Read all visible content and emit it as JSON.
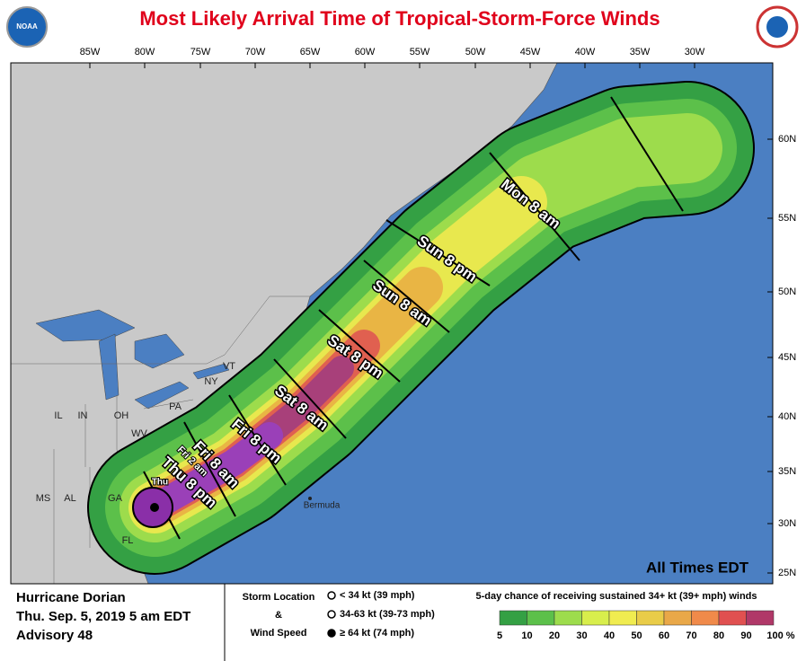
{
  "title": "Most Likely Arrival Time of Tropical-Storm-Force Winds",
  "logo_text": "NOAA",
  "lon_labels": [
    "85W",
    "80W",
    "75W",
    "70W",
    "65W",
    "60W",
    "55W",
    "50W",
    "45W",
    "40W",
    "35W",
    "30W"
  ],
  "lat_labels": [
    "60N",
    "55N",
    "50N",
    "45N",
    "40N",
    "35N",
    "30N",
    "25N"
  ],
  "state_labels": [
    "MS",
    "AL",
    "GA",
    "FL",
    "IL",
    "IN",
    "OH",
    "WV",
    "PA",
    "NY",
    "VT"
  ],
  "time_labels": [
    "Thu",
    "Thu 8 pm",
    "Fri 2 am",
    "Fri 8 am",
    "Fri 8 pm",
    "Sat 8 am",
    "Sat 8 pm",
    "Sun 8 am",
    "Sun 8 pm",
    "Mon 8 am"
  ],
  "place_label": "Bermuda",
  "note": "All Times EDT",
  "legend": {
    "storm": [
      "Hurricane Dorian",
      "Thu. Sep. 5, 2019  5 am EDT",
      "Advisory 48"
    ],
    "location_title": [
      "Storm Location",
      "&",
      "Wind Speed"
    ],
    "location_items": [
      "< 34 kt (39 mph)",
      "34-63 kt (39-73 mph)",
      "≥ 64 kt (74 mph)"
    ],
    "scale_title": "5-day chance of receiving sustained 34+ kt (39+ mph) winds",
    "scale_labels": [
      "5",
      "10",
      "20",
      "30",
      "40",
      "50",
      "60",
      "70",
      "80",
      "90",
      "100 %"
    ]
  }
}
